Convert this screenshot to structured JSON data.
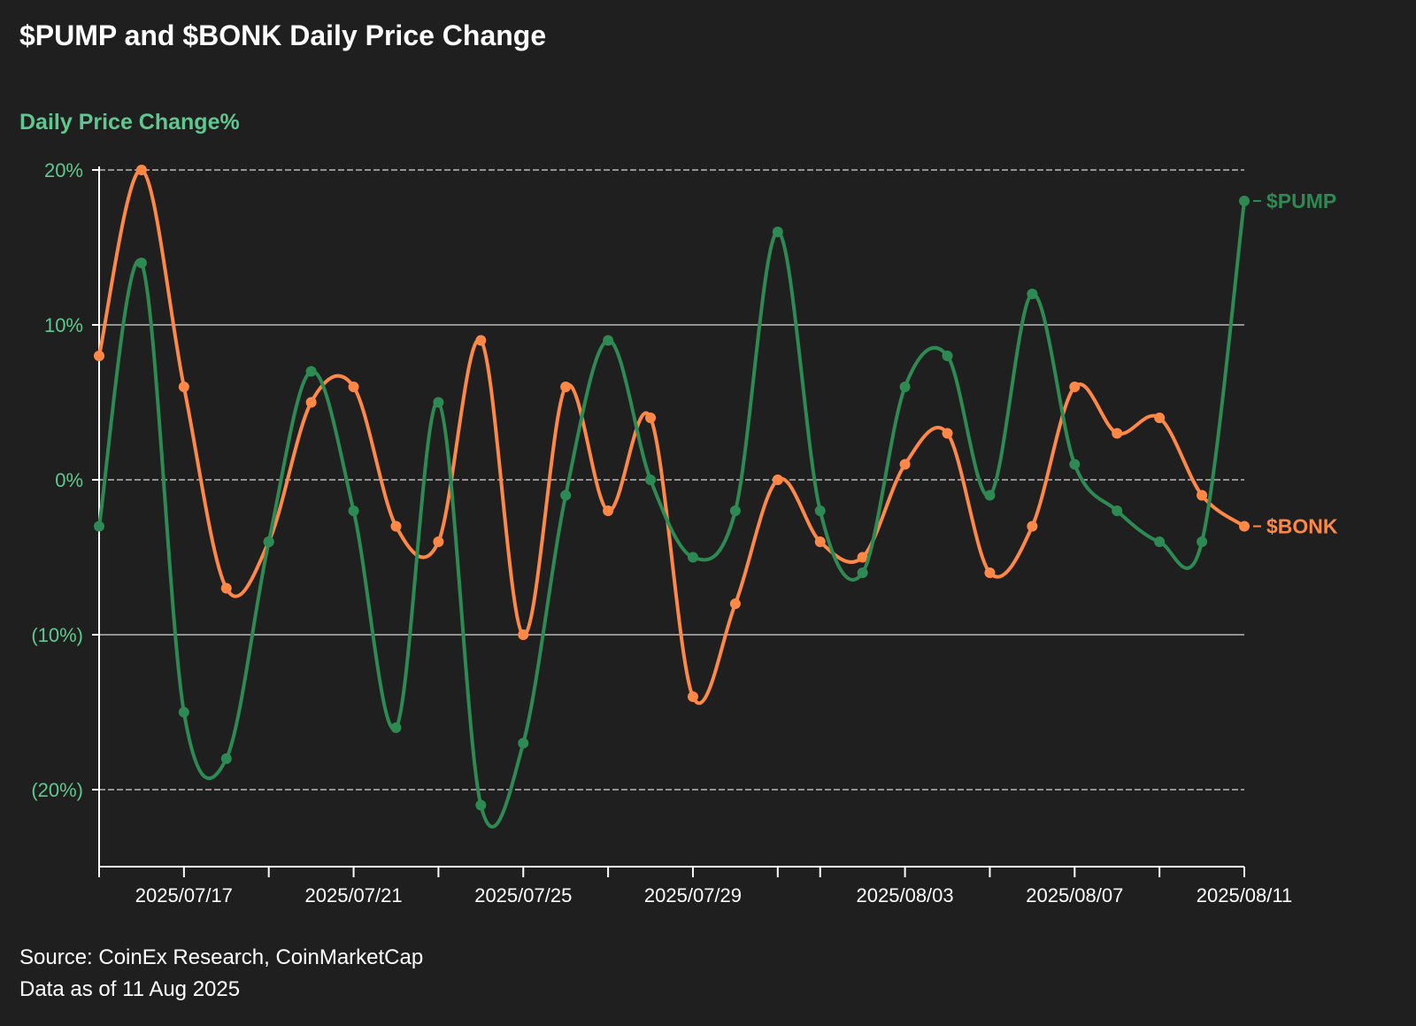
{
  "title": "$PUMP and $BONK Daily Price Change",
  "source": "Source: CoinEx Research, CoinMarketCap",
  "as_of": "Data as of 11 Aug 2025",
  "chart_data": {
    "type": "line",
    "title": "$PUMP and $BONK Daily Price Change",
    "ylabel": "Daily Price Change%",
    "xlabel": "",
    "x": [
      "2025/07/15",
      "2025/07/16",
      "2025/07/17",
      "2025/07/18",
      "2025/07/19",
      "2025/07/20",
      "2025/07/21",
      "2025/07/22",
      "2025/07/23",
      "2025/07/24",
      "2025/07/25",
      "2025/07/26",
      "2025/07/27",
      "2025/07/28",
      "2025/07/29",
      "2025/07/30",
      "2025/07/31",
      "2025/08/01",
      "2025/08/02",
      "2025/08/03",
      "2025/08/04",
      "2025/08/05",
      "2025/08/06",
      "2025/08/07",
      "2025/08/08",
      "2025/08/09",
      "2025/08/10",
      "2025/08/11"
    ],
    "x_tick_labels": [
      "2025/07/17",
      "2025/07/21",
      "2025/07/25",
      "2025/07/29",
      "2025/08/03",
      "2025/08/07",
      "2025/08/11"
    ],
    "ylim": [
      -25,
      20
    ],
    "y_ticks": [
      20,
      10,
      0,
      -10,
      -20
    ],
    "y_tick_labels": [
      "20%",
      "10%",
      "0%",
      "(10%)",
      "(20%)"
    ],
    "grid": true,
    "legend": "end-of-line labels",
    "series": [
      {
        "name": "$BONK",
        "color": "#ff8847",
        "values": [
          8,
          20,
          6,
          -7,
          -4,
          5,
          6,
          -3,
          -4,
          9,
          -10,
          6,
          -2,
          4,
          -14,
          -8,
          0,
          -4,
          -5,
          1,
          3,
          -6,
          -3,
          6,
          3,
          4,
          -1,
          -3
        ]
      },
      {
        "name": "$PUMP",
        "color": "#2d8a52",
        "values": [
          -3,
          14,
          -15,
          -18,
          -4,
          7,
          -2,
          -16,
          5,
          -21,
          -17,
          -1,
          9,
          0,
          -5,
          -2,
          16,
          -2,
          -6,
          6,
          8,
          -1,
          12,
          1,
          -2,
          -4,
          -4,
          18
        ]
      }
    ]
  }
}
